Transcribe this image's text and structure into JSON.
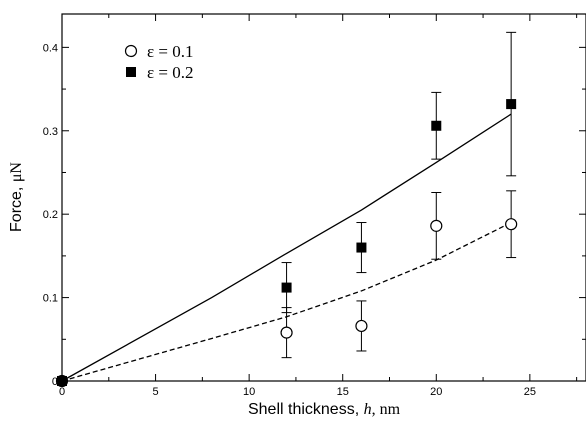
{
  "chart_data": {
    "type": "scatter",
    "xlabel": {
      "pre": "Shell thickness, ",
      "var": "h",
      "post": ", nm"
    },
    "ylabel": {
      "pre": "Force, ",
      "unit": "μN"
    },
    "xlim": [
      0,
      28
    ],
    "ylim": [
      0,
      0.44
    ],
    "xticks": [
      0,
      5,
      10,
      15,
      20,
      25
    ],
    "xtick_labels": [
      "0",
      "5",
      "10",
      "15",
      "20",
      "25"
    ],
    "yticks": [
      0,
      0.1,
      0.2,
      0.3,
      0.4
    ],
    "ytick_labels": [
      "0",
      "0.1",
      "0.2",
      "0.3",
      "0.4"
    ],
    "grid": false,
    "legend_position": "top-left",
    "series": [
      {
        "name": "ε = 0.1",
        "marker": "open-circle",
        "points": [
          {
            "x": 0,
            "y": 0,
            "ylow": 0,
            "yhigh": 0
          },
          {
            "x": 12,
            "y": 0.058,
            "ylow": 0.028,
            "yhigh": 0.088
          },
          {
            "x": 16,
            "y": 0.066,
            "ylow": 0.036,
            "yhigh": 0.096
          },
          {
            "x": 20,
            "y": 0.186,
            "ylow": 0.146,
            "yhigh": 0.226
          },
          {
            "x": 24,
            "y": 0.188,
            "ylow": 0.148,
            "yhigh": 0.228
          }
        ],
        "fit_line": {
          "style": "dashed",
          "x": [
            0,
            8,
            12,
            16,
            20,
            24
          ],
          "y": [
            0,
            0.051,
            0.077,
            0.108,
            0.145,
            0.19
          ]
        }
      },
      {
        "name": "ε = 0.2",
        "marker": "filled-square",
        "points": [
          {
            "x": 0,
            "y": 0,
            "ylow": 0,
            "yhigh": 0
          },
          {
            "x": 12,
            "y": 0.112,
            "ylow": 0.082,
            "yhigh": 0.142
          },
          {
            "x": 16,
            "y": 0.16,
            "ylow": 0.13,
            "yhigh": 0.19
          },
          {
            "x": 20,
            "y": 0.306,
            "ylow": 0.266,
            "yhigh": 0.346
          },
          {
            "x": 24,
            "y": 0.332,
            "ylow": 0.246,
            "yhigh": 0.418
          }
        ],
        "fit_line": {
          "style": "solid",
          "x": [
            0,
            8,
            12,
            16,
            20,
            24
          ],
          "y": [
            0,
            0.1,
            0.153,
            0.205,
            0.262,
            0.32
          ]
        }
      }
    ]
  }
}
